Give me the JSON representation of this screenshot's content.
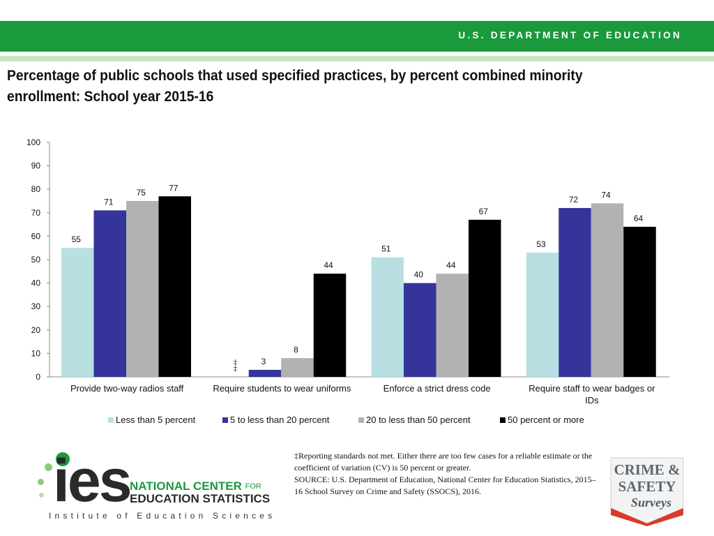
{
  "header": {
    "department": "U.S. DEPARTMENT OF EDUCATION"
  },
  "title": "Percentage of public schools that used specified practices, by percent combined minority enrollment: School year 2015-16",
  "chart_data": {
    "type": "bar",
    "title": "Percentage of public schools that used specified practices, by percent combined minority enrollment: School year 2015-16",
    "categories": [
      "Provide two-way radios staff",
      "Require students to wear uniforms",
      "Enforce a strict dress code",
      "Require staff to wear badges or IDs"
    ],
    "category_label_lines": [
      [
        "Provide two-way radios staff"
      ],
      [
        "Require students to wear uniforms"
      ],
      [
        "Enforce a strict dress code"
      ],
      [
        "Require staff to wear badges or",
        "IDs"
      ]
    ],
    "series": [
      {
        "name": "Less than 5 percent",
        "color": "#b8e0e3",
        "values": [
          55,
          null,
          51,
          53
        ],
        "labels": [
          "55",
          "‡",
          "51",
          "53"
        ]
      },
      {
        "name": "5 to less than 20 percent",
        "color": "#34349a",
        "values": [
          71,
          3,
          40,
          72
        ],
        "labels": [
          "71",
          "3",
          "40",
          "72"
        ]
      },
      {
        "name": "20 to less than 50 percent",
        "color": "#b2b2b2",
        "values": [
          75,
          8,
          44,
          74
        ],
        "labels": [
          "75",
          "8",
          "44",
          "74"
        ]
      },
      {
        "name": "50 percent or more",
        "color": "#000000",
        "values": [
          77,
          44,
          67,
          64
        ],
        "labels": [
          "77",
          "44",
          "67",
          "64"
        ]
      }
    ],
    "yticks": [
      0,
      10,
      20,
      30,
      40,
      50,
      60,
      70,
      80,
      90,
      100
    ],
    "ylim": [
      0,
      100
    ],
    "xlabel": "",
    "ylabel": "",
    "grid": false,
    "legend_position": "bottom"
  },
  "footnote": {
    "line1": "‡Reporting standards not met. Either there are too few cases for a reliable estimate or the coefficient of variation (CV) is 50 percent or greater.",
    "line2": "SOURCE: U.S. Department of Education, National Center for Education Statistics, 2015–16 School Survey on Crime and Safety (SSOCS), 2016."
  },
  "logos": {
    "ies_letters": "ies",
    "ies_national": "NATIONAL CENTER",
    "ies_for": "FOR",
    "ies_education_statistics": "EDUCATION STATISTICS",
    "ies_institute": "Institute of Education Sciences",
    "crime_line1": "CRIME &",
    "crime_line2": "SAFETY",
    "crime_line3": "Surveys"
  },
  "colors": {
    "banner_green": "#1a9a3c",
    "banner_stripe": "#c9e6c0"
  }
}
